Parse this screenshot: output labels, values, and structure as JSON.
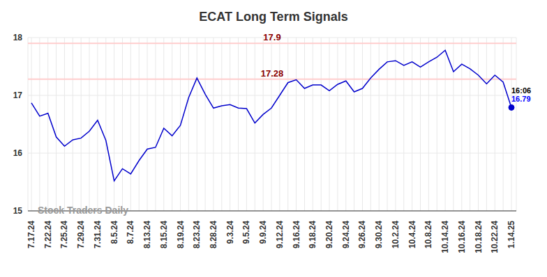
{
  "chart_data": {
    "type": "line",
    "title": "ECAT Long Term Signals",
    "watermark": "Stock Traders Daily",
    "categories": [
      "7.17.24",
      null,
      "7.22.24",
      null,
      "7.25.24",
      null,
      "7.29.24",
      null,
      "7.31.24",
      null,
      "8.5.24",
      null,
      "8.7.24",
      null,
      "8.13.24",
      null,
      "8.15.24",
      null,
      "8.19.24",
      null,
      "8.23.24",
      null,
      "8.28.24",
      null,
      "9.3.24",
      null,
      "9.5.24",
      null,
      "9.9.24",
      null,
      "9.12.24",
      null,
      "9.16.24",
      null,
      "9.18.24",
      null,
      "9.20.24",
      null,
      "9.24.24",
      null,
      "9.26.24",
      null,
      "9.30.24",
      null,
      "10.2.24",
      null,
      "10.4.24",
      null,
      "10.8.24",
      null,
      "10.14.24",
      null,
      "10.16.24",
      null,
      "10.18.24",
      null,
      "10.22.24",
      null,
      "1.14.25"
    ],
    "values": [
      16.87,
      16.64,
      16.69,
      16.28,
      16.12,
      16.23,
      16.26,
      16.38,
      16.57,
      16.22,
      15.52,
      15.73,
      15.64,
      15.87,
      16.07,
      16.1,
      16.43,
      16.3,
      16.48,
      16.96,
      17.3,
      17.02,
      16.78,
      16.82,
      16.84,
      16.78,
      16.77,
      16.52,
      16.67,
      16.78,
      17.0,
      17.22,
      17.27,
      17.12,
      17.18,
      17.18,
      17.08,
      17.19,
      17.25,
      17.06,
      17.12,
      17.3,
      17.45,
      17.58,
      17.6,
      17.52,
      17.58,
      17.49,
      17.58,
      17.66,
      17.78,
      17.41,
      17.54,
      17.46,
      17.35,
      17.2,
      17.35,
      17.23,
      16.79
    ],
    "color": "#0000cc",
    "ylim": [
      15,
      18
    ],
    "yticks": [
      15,
      16,
      17,
      18
    ],
    "grid": true,
    "reference_lines": [
      {
        "value": 17.9,
        "label": "17.9"
      },
      {
        "value": 17.28,
        "label": "17.28"
      }
    ],
    "last_point": {
      "time": "16:06",
      "value": 16.79
    }
  }
}
